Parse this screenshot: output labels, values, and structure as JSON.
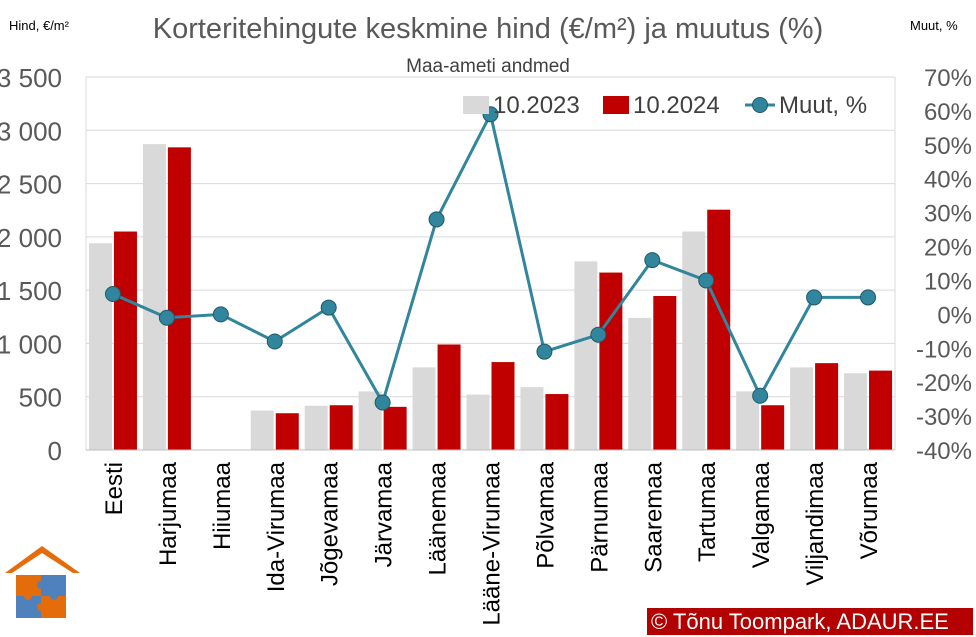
{
  "chart_data": {
    "type": "bar",
    "title": "Korteritehingute keskmine hind (€/m²) ja muutus (%)",
    "subtitle": "Maa-ameti andmed",
    "ylabel_left": "Hind, €/m²",
    "ylabel_right": "Muut, %",
    "ylim": [
      0,
      3500
    ],
    "y2lim": [
      -40,
      70
    ],
    "yticks": [
      "0",
      "500",
      "1 000",
      "1 500",
      "2 000",
      "2 500",
      "3 000",
      "3 500"
    ],
    "y2ticks": [
      "-40%",
      "-30%",
      "-20%",
      "-10%",
      "0%",
      "10%",
      "20%",
      "30%",
      "40%",
      "50%",
      "60%",
      "70%"
    ],
    "categories": [
      "Eesti",
      "Harjumaa",
      "Hiiumaa",
      "Ida-Virumaa",
      "Jõgevamaa",
      "Järvamaa",
      "Läänemaa",
      "Lääne-Virumaa",
      "Põlvamaa",
      "Pärnumaa",
      "Saaremaa",
      "Tartumaa",
      "Valgamaa",
      "Viljandimaa",
      "Võrumaa"
    ],
    "series": [
      {
        "name": "10.2023",
        "kind": "bar",
        "axis": "left",
        "color": "#d9d9d9",
        "values": [
          1940,
          2870,
          0,
          370,
          415,
          550,
          775,
          520,
          590,
          1770,
          1240,
          2050,
          550,
          775,
          720
        ]
      },
      {
        "name": "10.2024",
        "kind": "bar",
        "axis": "left",
        "color": "#c00000",
        "values": [
          2050,
          2840,
          0,
          345,
          420,
          405,
          990,
          825,
          525,
          1665,
          1445,
          2255,
          420,
          815,
          745
        ]
      },
      {
        "name": "Muut, %",
        "kind": "line",
        "axis": "right",
        "color": "#31859c",
        "values": [
          6,
          -1,
          0,
          -8,
          2,
          -26,
          28,
          59,
          -11,
          -6,
          16,
          10,
          -24,
          5,
          5
        ]
      }
    ],
    "legend": "top-right"
  },
  "footer": {
    "credit": "© Tõnu Toompark, ADAUR.EE",
    "logo_name": "ADAUR puzzle house logo"
  }
}
